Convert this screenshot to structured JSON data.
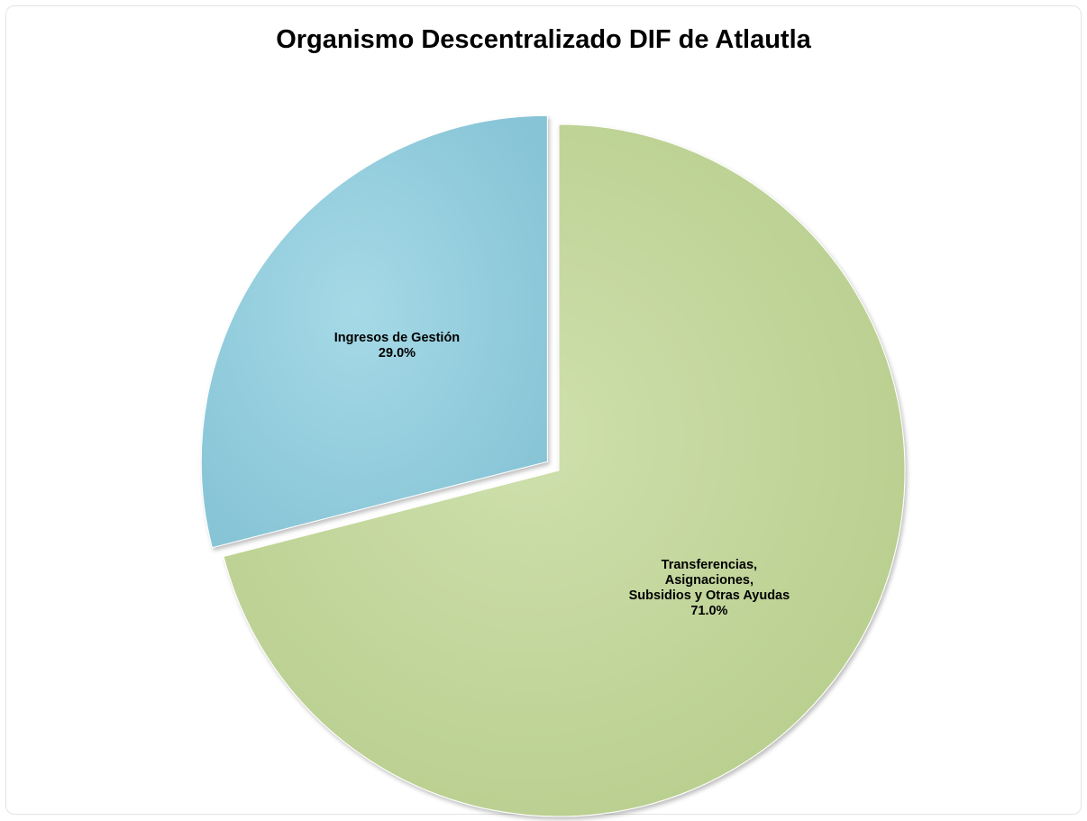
{
  "chart_data": {
    "type": "pie",
    "title": "Organismo Descentralizado DIF de Atlautla",
    "slices": [
      {
        "label": "Ingresos de Gestión",
        "value": 29.0,
        "value_label": "29.0%",
        "color": "#92cddc",
        "exploded": true
      },
      {
        "label": "Transferencias, Asignaciones, Subsidios y Otras Ayudas",
        "label_lines": [
          "Transferencias,",
          "Asignaciones,",
          "Subsidios y Otras Ayudas"
        ],
        "value": 71.0,
        "value_label": "71.0%",
        "color": "#c3d69b",
        "exploded": false
      }
    ],
    "legend": false
  }
}
